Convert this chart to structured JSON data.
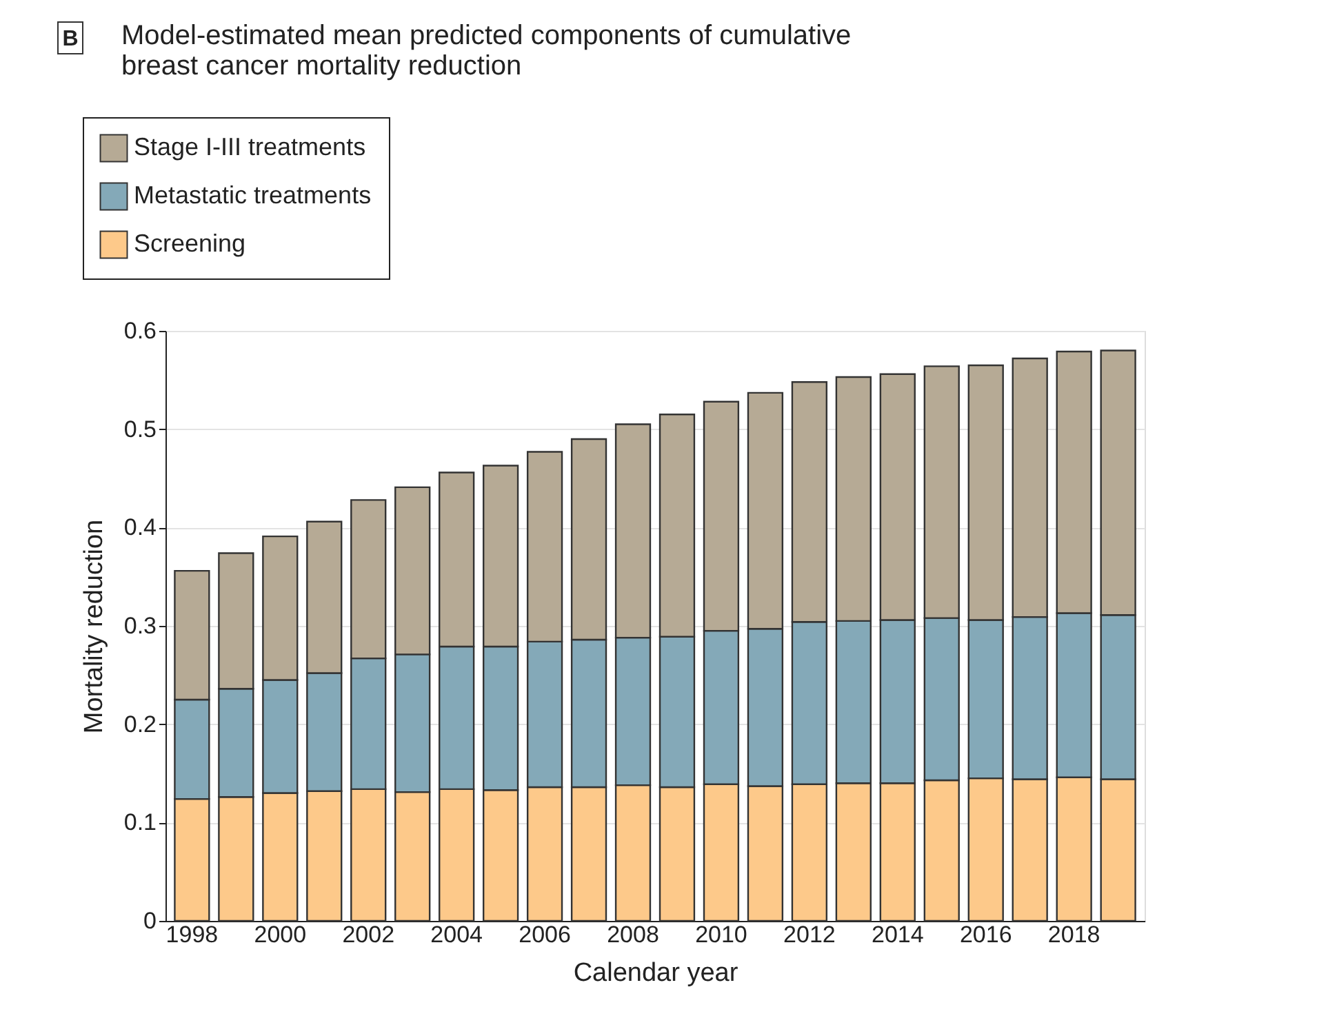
{
  "chart_data": {
    "type": "bar",
    "stacked": true,
    "title": "Model-estimated mean predicted components of cumulative breast cancer mortality reduction",
    "annotations": [
      "B"
    ],
    "xlabel": "Calendar year",
    "ylabel": "Mortality reduction",
    "categories": [
      "1998",
      null,
      "2000",
      null,
      "2002",
      null,
      "2004",
      null,
      "2006",
      null,
      "2008",
      null,
      "2010",
      null,
      "2012",
      null,
      "2014",
      null,
      "2016",
      null,
      "2018",
      null
    ],
    "series": [
      {
        "name": "Screening",
        "color": "#fdc98a",
        "values": [
          0.124,
          0.126,
          0.13,
          0.132,
          0.134,
          0.131,
          0.134,
          0.133,
          0.136,
          0.136,
          0.138,
          0.136,
          0.139,
          0.137,
          0.139,
          0.14,
          0.14,
          0.143,
          0.145,
          0.144,
          0.146,
          0.144
        ]
      },
      {
        "name": "Metastatic treatments",
        "color": "#84a9b8",
        "values": [
          0.101,
          0.11,
          0.115,
          0.12,
          0.133,
          0.14,
          0.145,
          0.146,
          0.148,
          0.15,
          0.15,
          0.153,
          0.156,
          0.16,
          0.165,
          0.165,
          0.166,
          0.165,
          0.161,
          0.165,
          0.167,
          0.167
        ]
      },
      {
        "name": "Stage I-III treatments",
        "color": "#b6aa95",
        "values": [
          0.131,
          0.138,
          0.146,
          0.154,
          0.161,
          0.17,
          0.177,
          0.184,
          0.193,
          0.204,
          0.217,
          0.226,
          0.233,
          0.24,
          0.244,
          0.248,
          0.25,
          0.256,
          0.259,
          0.263,
          0.266,
          0.269
        ]
      }
    ],
    "ylim": [
      0,
      0.6
    ],
    "yticks": [
      0,
      0.1,
      0.2,
      0.3,
      0.4,
      0.5,
      0.6
    ],
    "grid": "y",
    "legend": "top left"
  }
}
